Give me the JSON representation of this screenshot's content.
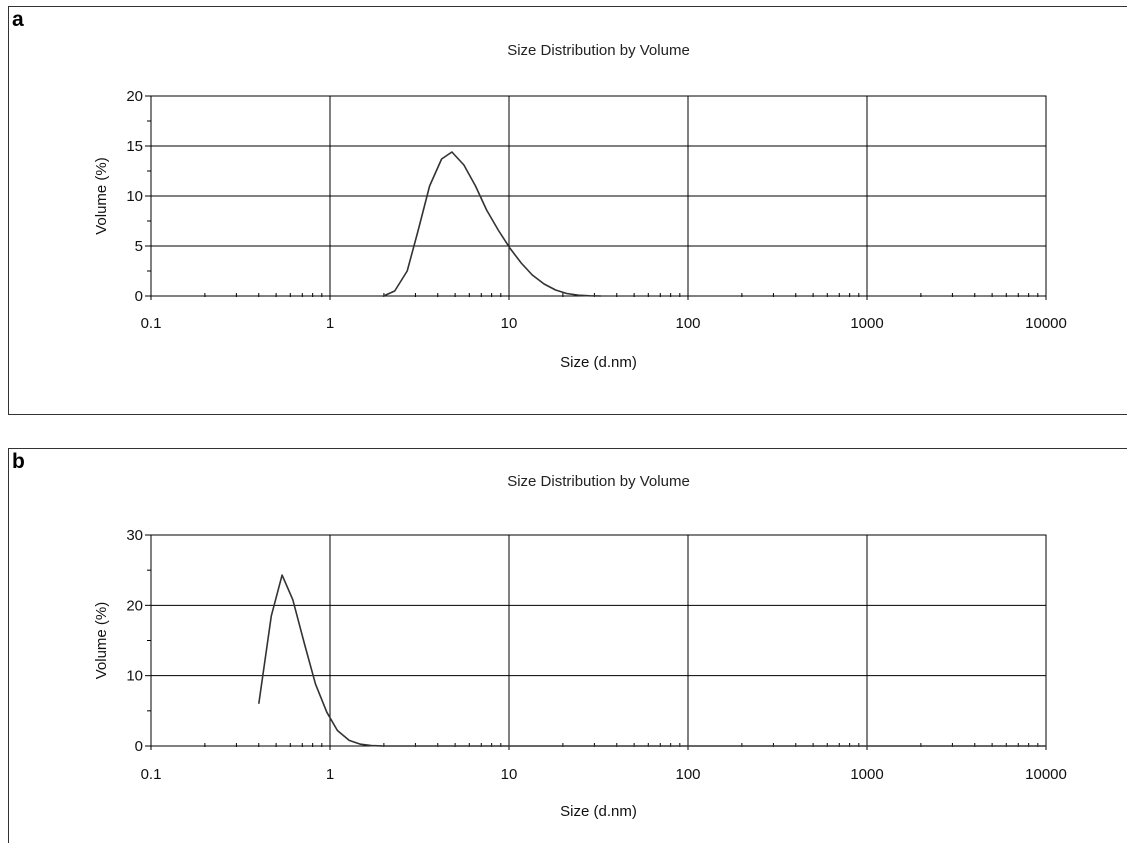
{
  "panels": [
    {
      "letter": "a"
    },
    {
      "letter": "b"
    }
  ],
  "chart_data": [
    {
      "type": "line",
      "title": "Size Distribution by Volume",
      "xlabel": "Size (d.nm)",
      "ylabel": "Volume (%)",
      "xscale": "log",
      "xlim": [
        0.1,
        10000
      ],
      "ylim": [
        0,
        20
      ],
      "xticks": [
        0.1,
        1,
        10,
        100,
        1000,
        10000
      ],
      "xtick_labels": [
        "0.1",
        "1",
        "10",
        "100",
        "1000",
        "10000"
      ],
      "yticks": [
        0,
        5,
        10,
        15,
        20
      ],
      "ytick_labels": [
        "0",
        "5",
        "10",
        "15",
        "20"
      ],
      "grid": true,
      "line_color": "#333333",
      "series": [
        {
          "x": [
            1.99,
            2.3,
            2.7,
            3.1,
            3.6,
            4.2,
            4.8,
            5.6,
            6.5,
            7.5,
            8.7,
            10.1,
            11.7,
            13.5,
            15.7,
            18.2,
            21.0,
            24.4,
            28.2,
            32.7
          ],
          "y": [
            0.0,
            0.5,
            2.5,
            6.5,
            11.0,
            13.7,
            14.4,
            13.1,
            11.0,
            8.6,
            6.6,
            4.8,
            3.3,
            2.1,
            1.2,
            0.6,
            0.25,
            0.08,
            0.02,
            0.0
          ]
        }
      ]
    },
    {
      "type": "line",
      "title": "Size Distribution by Volume",
      "xlabel": "Size (d.nm)",
      "ylabel": "Volume (%)",
      "xscale": "log",
      "xlim": [
        0.1,
        10000
      ],
      "ylim": [
        0,
        30
      ],
      "xticks": [
        0.1,
        1,
        10,
        100,
        1000,
        10000
      ],
      "xtick_labels": [
        "0.1",
        "1",
        "10",
        "100",
        "1000",
        "10000"
      ],
      "yticks": [
        0,
        10,
        20,
        30
      ],
      "ytick_labels": [
        "0",
        "10",
        "20",
        "30"
      ],
      "grid": true,
      "line_color": "#333333",
      "series": [
        {
          "x": [
            0.4,
            0.47,
            0.54,
            0.62,
            0.72,
            0.83,
            0.96,
            1.1,
            1.28,
            1.48,
            1.7,
            2.0,
            3.0,
            5.0,
            10,
            100,
            1000,
            10000
          ],
          "y": [
            6.0,
            18.5,
            24.3,
            20.8,
            14.5,
            8.8,
            4.8,
            2.2,
            0.8,
            0.25,
            0.05,
            0.0,
            0.0,
            0.0,
            0.0,
            0.0,
            0.0,
            0.0
          ]
        }
      ]
    }
  ]
}
